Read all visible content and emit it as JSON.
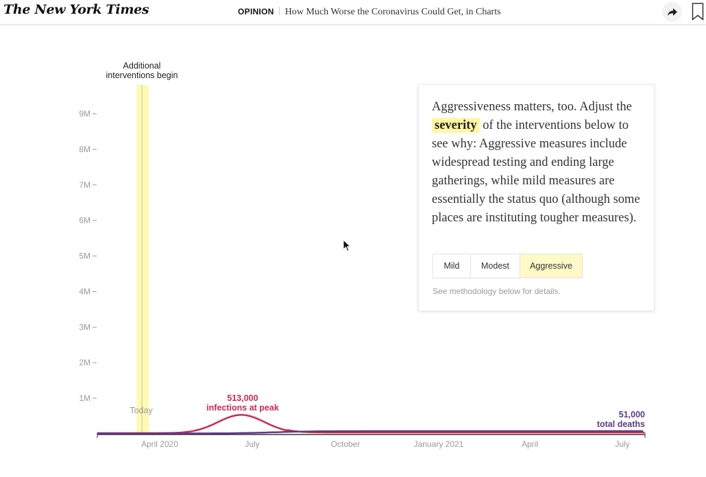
{
  "header": {
    "logo": "The New York Times",
    "section": "OPINION",
    "headline": "How Much Worse the Coronavirus Could Get, in Charts",
    "share_icon": "share-arrow-icon",
    "bookmark_icon": "bookmark-icon"
  },
  "chart_data": {
    "type": "line",
    "x_ticks": [
      "April 2020",
      "July",
      "October",
      "January 2021",
      "April",
      "July"
    ],
    "y_ticks": [
      "1M",
      "2M",
      "3M",
      "4M",
      "5M",
      "6M",
      "7M",
      "8M",
      "9M"
    ],
    "ylim": [
      0,
      9000000
    ],
    "series": [
      {
        "name": "infections",
        "color": "#d0294b",
        "peak_month": "June 2020",
        "peak_value": 513000
      },
      {
        "name": "total deaths",
        "color": "#5b3a86",
        "final_value": 51000
      }
    ],
    "annotations": {
      "interventions_line1": "Additional",
      "interventions_line2": "interventions begin",
      "today": "Today",
      "peak_value": "513,000",
      "peak_label": "infections at peak",
      "deaths_value": "51,000",
      "deaths_label": "total deaths"
    },
    "highlight_band_color": "#fdfbb3"
  },
  "card": {
    "text_before": "Aggressiveness matters, too. Adjust the",
    "highlight": "severity",
    "text_after": "of the interventions below to see why: Aggressive measures include widespread testing and ending large gatherings, while mild measures are essentially the status quo (although some places are instituting tougher measures).",
    "buttons": [
      "Mild",
      "Modest",
      "Aggressive"
    ],
    "selected": "Aggressive",
    "note": "See methodology below for details."
  },
  "colors": {
    "accent_highlight": "#fdf7a6",
    "infections": "#d0294b",
    "deaths": "#5b3a86"
  }
}
